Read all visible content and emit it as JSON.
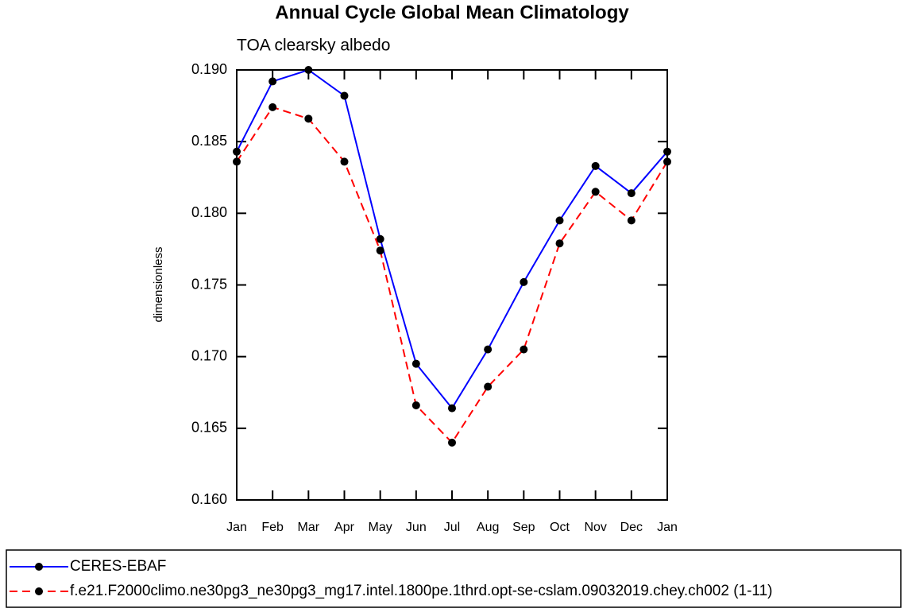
{
  "chart_data": {
    "type": "line",
    "title": "Annual Cycle Global Mean Climatology",
    "subtitle": "TOA clearsky albedo",
    "y_label": "dimensionless",
    "categories": [
      "Jan",
      "Feb",
      "Mar",
      "Apr",
      "May",
      "Jun",
      "Jul",
      "Aug",
      "Sep",
      "Oct",
      "Nov",
      "Dec",
      "Jan"
    ],
    "series": [
      {
        "name": "CERES-EBAF",
        "color": "#0000ff",
        "dash": false,
        "values": [
          0.1843,
          0.1892,
          0.19,
          0.1882,
          0.1782,
          0.1695,
          0.1664,
          0.1705,
          0.1752,
          0.1795,
          0.1833,
          0.1814,
          0.1843
        ]
      },
      {
        "name": "f.e21.F2000climo.ne30pg3_ne30pg3_mg17.intel.1800pe.1thrd.opt-se-cslam.09032019.chey.ch002 (1-11)",
        "color": "#ff0000",
        "dash": true,
        "values": [
          0.1836,
          0.1874,
          0.1866,
          0.1836,
          0.1774,
          0.1666,
          0.164,
          0.1679,
          0.1705,
          0.1779,
          0.1815,
          0.1795,
          0.1836
        ]
      }
    ],
    "ylim": [
      0.16,
      0.19
    ],
    "yticks": [
      {
        "value": 0.16,
        "label": "0.160"
      },
      {
        "value": 0.165,
        "label": "0.165"
      },
      {
        "value": 0.17,
        "label": "0.170"
      },
      {
        "value": 0.175,
        "label": "0.175"
      },
      {
        "value": 0.18,
        "label": "0.180"
      },
      {
        "value": 0.185,
        "label": "0.185"
      },
      {
        "value": 0.19,
        "label": "0.190"
      }
    ]
  }
}
